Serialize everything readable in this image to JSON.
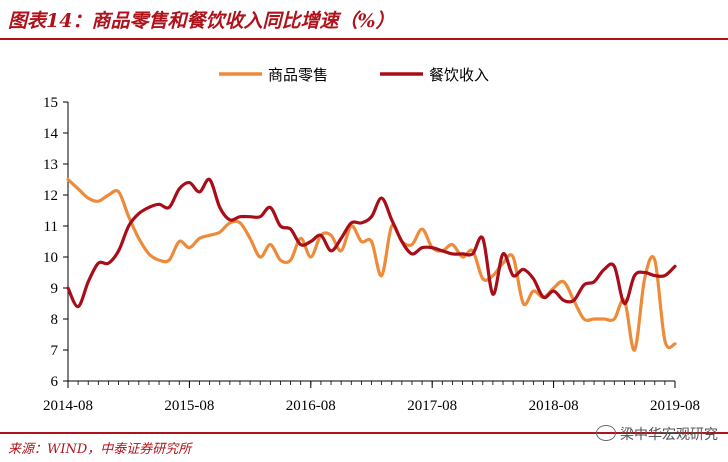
{
  "header": {
    "title": "图表14：商品零售和餐饮收入同比增速（%）"
  },
  "footer": {
    "source": "来源：WIND，中泰证券研究所",
    "watermark": "梁中华宏观研究"
  },
  "colors": {
    "retail": "#ED8B3B",
    "catering": "#A80E1A",
    "brand": "#b0121b"
  },
  "chart_data": {
    "type": "line",
    "title": "",
    "xlabel": "",
    "ylabel": "",
    "ylim": [
      6,
      15
    ],
    "yticks": [
      6,
      7,
      8,
      9,
      10,
      11,
      12,
      13,
      14,
      15
    ],
    "xticks": [
      "2014-08",
      "2015-08",
      "2016-08",
      "2017-08",
      "2018-08",
      "2019-08"
    ],
    "x": [
      "2014-08",
      "2014-09",
      "2014-10",
      "2014-11",
      "2014-12",
      "2015-01",
      "2015-02",
      "2015-03",
      "2015-04",
      "2015-05",
      "2015-06",
      "2015-07",
      "2015-08",
      "2015-09",
      "2015-10",
      "2015-11",
      "2015-12",
      "2016-01",
      "2016-02",
      "2016-03",
      "2016-04",
      "2016-05",
      "2016-06",
      "2016-07",
      "2016-08",
      "2016-09",
      "2016-10",
      "2016-11",
      "2016-12",
      "2017-01",
      "2017-02",
      "2017-03",
      "2017-04",
      "2017-05",
      "2017-06",
      "2017-07",
      "2017-08",
      "2017-09",
      "2017-10",
      "2017-11",
      "2017-12",
      "2018-01",
      "2018-02",
      "2018-03",
      "2018-04",
      "2018-05",
      "2018-06",
      "2018-07",
      "2018-08",
      "2018-09",
      "2018-10",
      "2018-11",
      "2018-12",
      "2019-01",
      "2019-02",
      "2019-03",
      "2019-04",
      "2019-05",
      "2019-06",
      "2019-07",
      "2019-08"
    ],
    "grid": false,
    "legend": "top-center",
    "series": [
      {
        "name": "商品零售",
        "color_key": "retail",
        "values": [
          12.5,
          12.2,
          11.9,
          11.8,
          12.0,
          12.1,
          11.3,
          10.6,
          10.1,
          9.9,
          9.9,
          10.5,
          10.3,
          10.6,
          10.7,
          10.8,
          11.1,
          11.1,
          10.6,
          10.0,
          10.4,
          9.9,
          9.9,
          10.6,
          10.0,
          10.7,
          10.7,
          10.2,
          11.0,
          10.5,
          10.5,
          9.4,
          11.0,
          10.5,
          10.4,
          10.9,
          10.3,
          10.2,
          10.4,
          10.0,
          10.2,
          9.3,
          9.4,
          9.8,
          10.0,
          8.5,
          8.9,
          8.7,
          9.0,
          9.2,
          8.6,
          8.0,
          8.0,
          8.0,
          8.0,
          8.6,
          7.0,
          9.3,
          9.9,
          7.3,
          7.2
        ]
      },
      {
        "name": "餐饮收入",
        "color_key": "catering",
        "values": [
          9.0,
          8.4,
          9.2,
          9.8,
          9.8,
          10.2,
          11.0,
          11.4,
          11.6,
          11.7,
          11.6,
          12.2,
          12.4,
          12.1,
          12.5,
          11.6,
          11.2,
          11.3,
          11.3,
          11.3,
          11.6,
          11.0,
          10.9,
          10.4,
          10.5,
          10.7,
          10.2,
          10.6,
          11.1,
          11.1,
          11.3,
          11.9,
          11.2,
          10.5,
          10.1,
          10.3,
          10.3,
          10.2,
          10.1,
          10.1,
          10.1,
          10.6,
          8.8,
          10.1,
          9.4,
          9.6,
          9.3,
          8.7,
          8.9,
          8.6,
          8.6,
          9.1,
          9.2,
          9.6,
          9.7,
          8.5,
          9.4,
          9.5,
          9.4,
          9.4,
          9.7
        ]
      }
    ]
  }
}
